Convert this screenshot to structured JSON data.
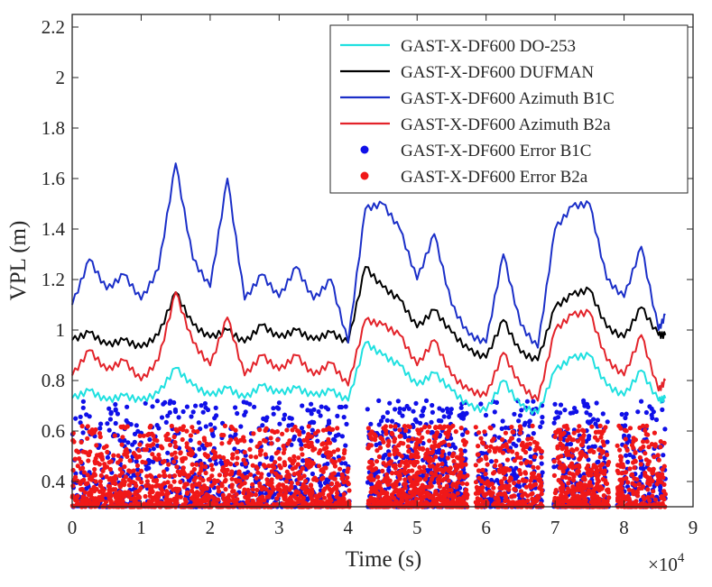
{
  "chart_data": {
    "type": "line",
    "xlabel": "Time (s)",
    "ylabel": "VPL (m)",
    "x_exponent_label": "×10",
    "x_exponent_power": "4",
    "xlim": [
      0,
      90000
    ],
    "ylim": [
      0.3,
      2.25
    ],
    "x_ticks": [
      0,
      10000,
      20000,
      30000,
      40000,
      50000,
      60000,
      70000,
      80000,
      90000
    ],
    "x_tick_labels": [
      "0",
      "1",
      "2",
      "3",
      "4",
      "5",
      "6",
      "7",
      "8",
      "9"
    ],
    "y_ticks": [
      0.4,
      0.6,
      0.8,
      1.0,
      1.2,
      1.4,
      1.6,
      1.8,
      2.0,
      2.2
    ],
    "y_tick_labels": [
      "0.4",
      "0.6",
      "0.8",
      "1",
      "1.2",
      "1.4",
      "1.6",
      "1.8",
      "2",
      "2.2"
    ],
    "legend_position": "top-right",
    "line_x": [
      0,
      2500,
      5000,
      7500,
      10000,
      12500,
      15000,
      17500,
      20000,
      22500,
      25000,
      27500,
      30000,
      32500,
      35000,
      37500,
      40000,
      42500,
      45000,
      47500,
      50000,
      52500,
      55000,
      57500,
      60000,
      62500,
      65000,
      67500,
      70000,
      72500,
      75000,
      77500,
      80000,
      82500,
      85000,
      86000
    ],
    "series": [
      {
        "name": "GAST-X-DF600 DO-253",
        "kind": "line",
        "color": "#1fe0e0",
        "values": [
          0.73,
          0.76,
          0.72,
          0.74,
          0.72,
          0.75,
          0.85,
          0.78,
          0.74,
          0.77,
          0.73,
          0.78,
          0.75,
          0.77,
          0.74,
          0.76,
          0.72,
          0.95,
          0.9,
          0.86,
          0.78,
          0.83,
          0.76,
          0.7,
          0.68,
          0.8,
          0.7,
          0.67,
          0.84,
          0.89,
          0.9,
          0.78,
          0.74,
          0.84,
          0.72,
          0.73
        ]
      },
      {
        "name": "GAST-X-DF600 DUFMAN",
        "kind": "line",
        "color": "#000000",
        "values": [
          0.96,
          0.99,
          0.94,
          0.96,
          0.93,
          0.98,
          1.15,
          1.02,
          0.97,
          1.0,
          0.95,
          1.02,
          0.97,
          1.0,
          0.96,
          0.99,
          0.95,
          1.25,
          1.17,
          1.12,
          1.01,
          1.08,
          0.99,
          0.92,
          0.89,
          1.04,
          0.91,
          0.88,
          1.09,
          1.14,
          1.16,
          1.01,
          0.97,
          1.09,
          0.98,
          0.98
        ]
      },
      {
        "name": "GAST-X-DF600 Azimuth B1C",
        "kind": "line",
        "color": "#1b2fc8",
        "values": [
          1.1,
          1.28,
          1.16,
          1.22,
          1.12,
          1.24,
          1.66,
          1.28,
          1.17,
          1.6,
          1.12,
          1.22,
          1.13,
          1.25,
          1.12,
          1.2,
          0.95,
          1.48,
          1.5,
          1.4,
          1.2,
          1.38,
          1.1,
          0.98,
          0.95,
          1.3,
          1.02,
          0.93,
          1.4,
          1.49,
          1.5,
          1.2,
          1.13,
          1.33,
          1.0,
          1.06
        ]
      },
      {
        "name": "GAST-X-DF600 Azimuth B2a",
        "kind": "line",
        "color": "#e3232a",
        "values": [
          0.82,
          0.92,
          0.84,
          0.88,
          0.8,
          0.88,
          1.15,
          0.95,
          0.86,
          1.05,
          0.82,
          0.9,
          0.84,
          0.9,
          0.82,
          0.87,
          0.78,
          1.04,
          1.02,
          0.98,
          0.86,
          0.96,
          0.82,
          0.76,
          0.74,
          0.91,
          0.78,
          0.72,
          1.0,
          1.06,
          1.07,
          0.88,
          0.82,
          0.98,
          0.76,
          0.8
        ]
      },
      {
        "name": "GAST-X-DF600 Error B1C",
        "kind": "scatter",
        "color": "#1010e8",
        "x_range": [
          0,
          86000
        ],
        "y_range": [
          0.3,
          0.72
        ],
        "n_points": 1800
      },
      {
        "name": "GAST-X-DF600 Error B2a",
        "kind": "scatter",
        "color": "#f01818",
        "x_range": [
          0,
          86000
        ],
        "y_range": [
          0.3,
          0.62
        ],
        "n_points": 2600
      }
    ]
  }
}
